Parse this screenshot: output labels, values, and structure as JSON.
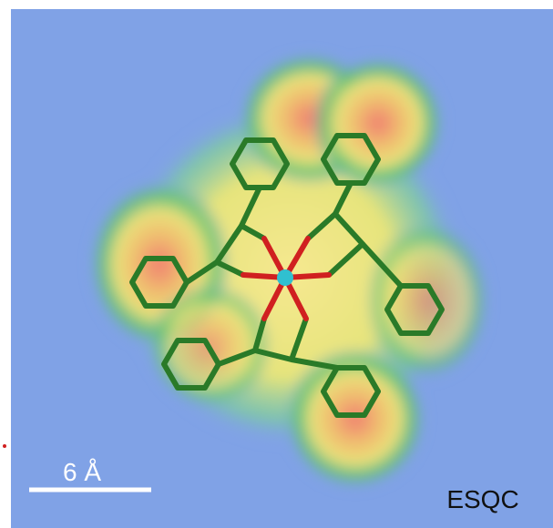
{
  "scale_bar": {
    "label": "6 Å"
  },
  "watermark": "ESQC"
}
